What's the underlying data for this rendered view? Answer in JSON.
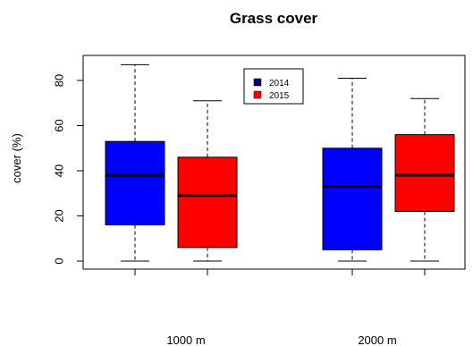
{
  "chart_data": {
    "type": "box",
    "title": "Grass cover",
    "ylabel": "cover (%)",
    "xlabel": "",
    "ylim": [
      -2,
      90
    ],
    "yticks": [
      0,
      20,
      40,
      60,
      80
    ],
    "categories": [
      "1000 m",
      "2000 m"
    ],
    "legend": {
      "position": "top-center",
      "entries": [
        "2014",
        "2015"
      ]
    },
    "series": [
      {
        "name": "2014",
        "color": "#0000ff",
        "boxes": [
          {
            "category": "1000 m",
            "min": 0,
            "q1": 16,
            "median": 38,
            "q3": 53,
            "max": 87
          },
          {
            "category": "2000 m",
            "min": 0,
            "q1": 5,
            "median": 33,
            "q3": 50,
            "max": 81
          }
        ]
      },
      {
        "name": "2015",
        "color": "#ff0000",
        "boxes": [
          {
            "category": "1000 m",
            "min": 0,
            "q1": 6,
            "median": 29,
            "q3": 46,
            "max": 71
          },
          {
            "category": "2000 m",
            "min": 0,
            "q1": 22,
            "median": 38,
            "q3": 56,
            "max": 72
          }
        ]
      }
    ],
    "legend_colors": {
      "2014": "#000080",
      "2015": "#ff0000"
    }
  }
}
